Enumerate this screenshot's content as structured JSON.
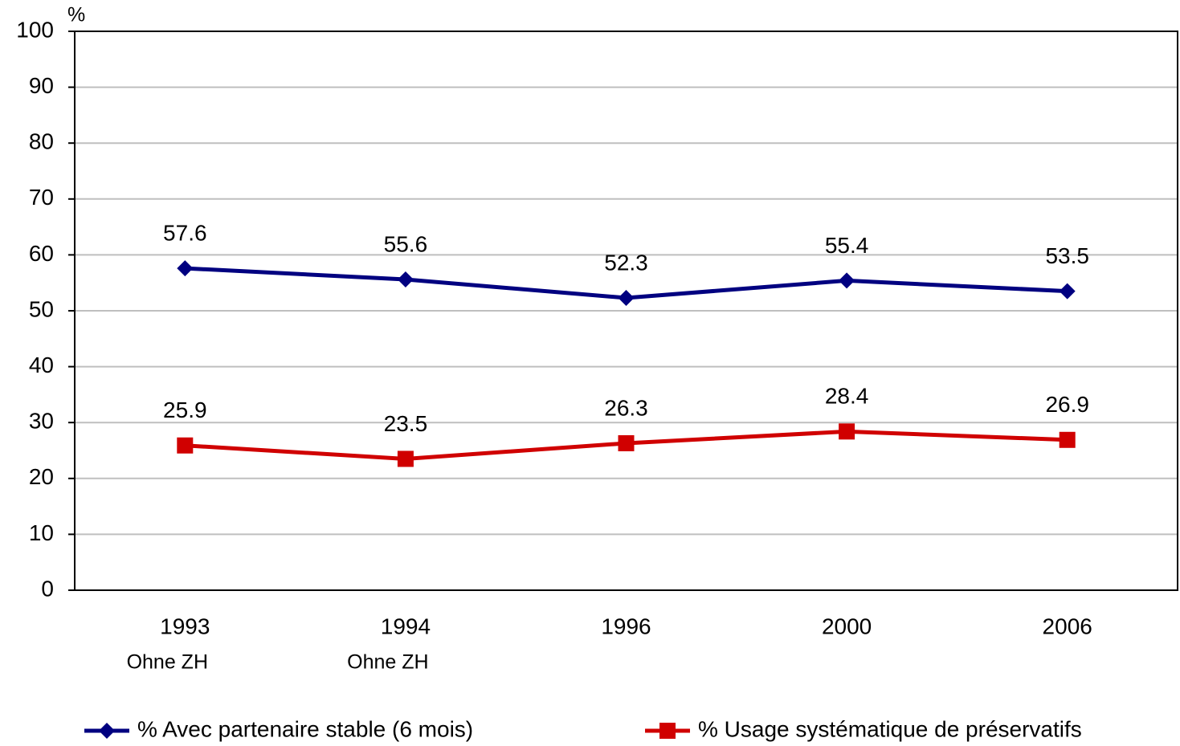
{
  "chart_data": {
    "type": "line",
    "y_unit": "%",
    "categories": [
      "1993",
      "1994",
      "1996",
      "2000",
      "2006"
    ],
    "category_notes": [
      "Ohne ZH",
      "Ohne ZH",
      null,
      null,
      null
    ],
    "series": [
      {
        "name": "% Avec partenaire stable (6 mois)",
        "color": "#000080",
        "marker": "diamond",
        "values": [
          57.6,
          55.6,
          52.3,
          55.4,
          53.5
        ]
      },
      {
        "name": "% Usage systématique de préservatifs",
        "color": "#d00000",
        "marker": "square",
        "values": [
          25.9,
          23.5,
          26.3,
          28.4,
          26.9
        ]
      }
    ],
    "ylim": [
      0,
      100
    ],
    "yticks": [
      0,
      10,
      20,
      30,
      40,
      50,
      60,
      70,
      80,
      90,
      100
    ],
    "grid": true,
    "legend": "bottom"
  }
}
